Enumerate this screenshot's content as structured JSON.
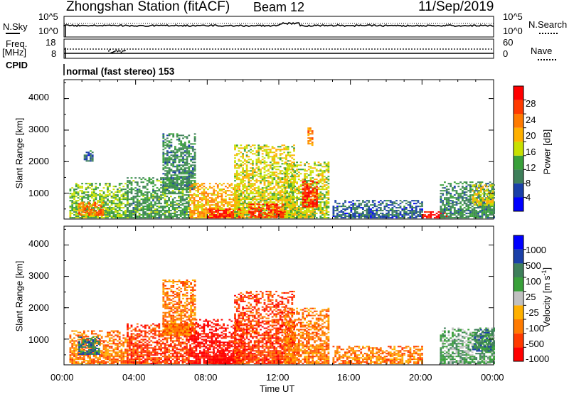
{
  "header": {
    "station": "Zhongshan Station (fitACF)",
    "beam": "Beam 12",
    "date": "11/Sep/2019"
  },
  "panels": {
    "nsky": {
      "label": "N.Sky",
      "tick_top": "10^5",
      "tick_bottom": "10^0"
    },
    "nsearch": {
      "label": "N.Search",
      "tick_top": "10^5",
      "tick_bottom": "10^0"
    },
    "freq": {
      "label_line1": "Freq.",
      "label_line2": "[MHz]",
      "tick_top": "18",
      "tick_bottom": "8"
    },
    "nave": {
      "label": "Nave",
      "tick_top": "60",
      "tick_bottom": "0"
    },
    "cpid": {
      "label": "CPID",
      "value": "normal (fast stereo) 153"
    }
  },
  "colors": {
    "power": [
      "#0000ff",
      "#1a3fa8",
      "#3e7f5a",
      "#39a03a",
      "#c8e000",
      "#ffb000",
      "#ff7a00",
      "#ff3a00",
      "#ff0000"
    ],
    "velocity": [
      "#0000ff",
      "#1a3fa8",
      "#3e7f5a",
      "#39a03a",
      "#c0c0c0",
      "#ffb000",
      "#ff7a00",
      "#ff3a00",
      "#ff0000"
    ]
  },
  "chart_data": [
    {
      "type": "heatmap",
      "name": "Power",
      "ylabel": "Slant Range [km]",
      "ylim": [
        180,
        4600
      ],
      "yticks": [
        1000,
        2000,
        3000,
        4000
      ],
      "xlim": [
        0,
        24
      ],
      "colorbar": {
        "label": "Power [dB]",
        "ticks": [
          "4",
          "8",
          "12",
          "16",
          "20",
          "24",
          "28"
        ],
        "range": [
          0,
          32
        ]
      },
      "regions": [
        {
          "t0": 0.3,
          "t1": 3.5,
          "r0": 200,
          "r1": 1300,
          "v": 14
        },
        {
          "t0": 0.8,
          "t1": 2.2,
          "r0": 280,
          "r1": 700,
          "v": 24
        },
        {
          "t0": 1.1,
          "t1": 1.6,
          "r0": 2000,
          "r1": 2350,
          "v": 7
        },
        {
          "t0": 3.5,
          "t1": 7.0,
          "r0": 200,
          "r1": 1500,
          "v": 11
        },
        {
          "t0": 5.5,
          "t1": 7.3,
          "r0": 1100,
          "r1": 2900,
          "v": 10
        },
        {
          "t0": 7.0,
          "t1": 10.0,
          "r0": 200,
          "r1": 1300,
          "v": 20
        },
        {
          "t0": 8.0,
          "t1": 9.8,
          "r0": 200,
          "r1": 500,
          "v": 29
        },
        {
          "t0": 9.5,
          "t1": 12.8,
          "r0": 200,
          "r1": 2500,
          "v": 17
        },
        {
          "t0": 10.3,
          "t1": 12.3,
          "r0": 220,
          "r1": 650,
          "v": 28
        },
        {
          "t0": 12.3,
          "t1": 14.8,
          "r0": 200,
          "r1": 2000,
          "v": 16
        },
        {
          "t0": 13.3,
          "t1": 14.1,
          "r0": 550,
          "r1": 1400,
          "v": 29
        },
        {
          "t0": 13.6,
          "t1": 13.9,
          "r0": 2500,
          "r1": 3050,
          "v": 22
        },
        {
          "t0": 15.0,
          "t1": 20.0,
          "r0": 200,
          "r1": 750,
          "v": 7
        },
        {
          "t0": 20.0,
          "t1": 21.4,
          "r0": 200,
          "r1": 400,
          "v": 30
        },
        {
          "t0": 21.0,
          "t1": 24.0,
          "r0": 200,
          "r1": 1350,
          "v": 10
        },
        {
          "t0": 22.8,
          "t1": 24.0,
          "r0": 600,
          "r1": 1300,
          "v": 17
        }
      ]
    },
    {
      "type": "heatmap",
      "name": "Velocity",
      "xlabel": "Time UT",
      "ylabel": "Slant Range [km]",
      "ylim": [
        180,
        4600
      ],
      "yticks": [
        1000,
        2000,
        3000,
        4000
      ],
      "xlim": [
        0,
        24
      ],
      "xticks": [
        "00:00",
        "04:00",
        "08:00",
        "12:00",
        "16:00",
        "20:00",
        "00:00"
      ],
      "colorbar": {
        "label": "Velocity [m s^-1]",
        "ticks": [
          "1000",
          "500",
          "100",
          "25",
          "-25",
          "-100",
          "-500",
          "-1000"
        ]
      },
      "regions": [
        {
          "t0": 0.3,
          "t1": 3.5,
          "r0": 200,
          "r1": 1250,
          "v": -2
        },
        {
          "t0": 0.8,
          "t1": 2.0,
          "r0": 500,
          "r1": 1050,
          "v": 2
        },
        {
          "t0": 3.5,
          "t1": 7.0,
          "r0": 200,
          "r1": 1500,
          "v": -3
        },
        {
          "t0": 5.5,
          "t1": 7.3,
          "r0": 1100,
          "r1": 2900,
          "v": -2
        },
        {
          "t0": 7.0,
          "t1": 10.0,
          "r0": 200,
          "r1": 1600,
          "v": -4
        },
        {
          "t0": 8.3,
          "t1": 9.8,
          "r0": 200,
          "r1": 700,
          "v": -5
        },
        {
          "t0": 9.5,
          "t1": 12.8,
          "r0": 200,
          "r1": 2500,
          "v": -3
        },
        {
          "t0": 12.3,
          "t1": 14.8,
          "r0": 200,
          "r1": 2000,
          "v": -2
        },
        {
          "t0": 15.0,
          "t1": 20.0,
          "r0": 200,
          "r1": 750,
          "v": -2
        },
        {
          "t0": 21.0,
          "t1": 24.0,
          "r0": 200,
          "r1": 1350,
          "v": 1
        },
        {
          "t0": 22.8,
          "t1": 24.0,
          "r0": 600,
          "r1": 1300,
          "v": 2
        }
      ]
    }
  ]
}
